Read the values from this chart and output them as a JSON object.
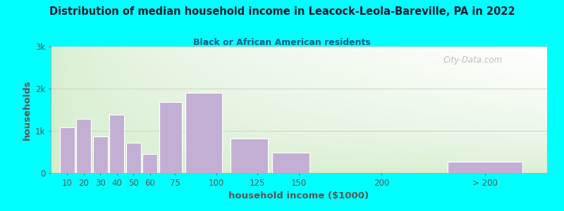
{
  "title": "Distribution of median household income in Leacock-Leola-Bareville, PA in 2022",
  "subtitle": "Black or African American residents",
  "xlabel": "household income ($1000)",
  "ylabel": "households",
  "background_color": "#00FFFF",
  "bar_color": "#c4afd4",
  "bar_edge_color": "#ffffff",
  "title_color": "#1a1a2e",
  "subtitle_color": "#006080",
  "axis_label_color": "#555555",
  "tick_color": "#555555",
  "watermark": "City-Data.com",
  "values": [
    1080,
    1280,
    860,
    1380,
    720,
    450,
    1680,
    1900,
    820,
    480,
    0,
    270
  ],
  "bar_widths": [
    10,
    10,
    10,
    10,
    10,
    10,
    15,
    25,
    25,
    25,
    50,
    50
  ],
  "bar_lefts": [
    5,
    15,
    25,
    35,
    45,
    55,
    65,
    80,
    107.5,
    132.5,
    162.5,
    237.5
  ],
  "xlim": [
    0,
    300
  ],
  "ylim": [
    0,
    3000
  ],
  "ytick_labels": [
    "0",
    "1k",
    "2k",
    "3k"
  ],
  "xtick_positions": [
    10,
    20,
    30,
    40,
    50,
    60,
    75,
    100,
    125,
    150,
    200,
    262.5
  ],
  "xtick_labels": [
    "10",
    "20",
    "30",
    "40",
    "50",
    "60",
    "75",
    "100",
    "125",
    "150",
    "200",
    "> 200"
  ]
}
